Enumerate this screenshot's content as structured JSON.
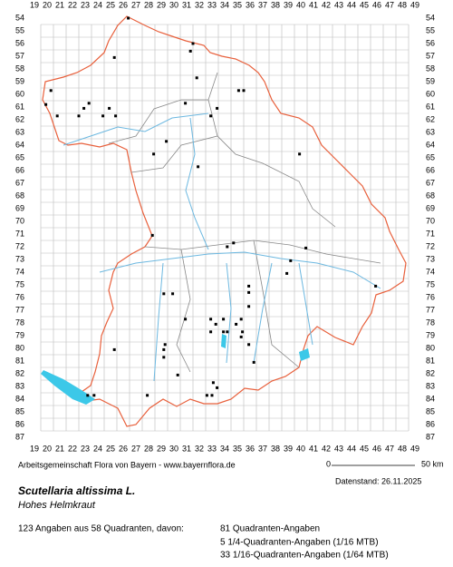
{
  "map": {
    "xticks": [
      19,
      20,
      21,
      22,
      23,
      24,
      25,
      26,
      27,
      28,
      29,
      30,
      31,
      32,
      33,
      34,
      35,
      36,
      37,
      38,
      39,
      40,
      41,
      42,
      43,
      44,
      45,
      46,
      47,
      48,
      49
    ],
    "yticks": [
      54,
      55,
      56,
      57,
      58,
      59,
      60,
      61,
      62,
      63,
      64,
      65,
      66,
      67,
      68,
      69,
      70,
      71,
      72,
      73,
      74,
      75,
      76,
      77,
      78,
      79,
      80,
      81,
      82,
      83,
      84,
      85,
      86,
      87
    ],
    "points": [
      [
        26.4,
        54.0
      ],
      [
        31.5,
        56.0
      ],
      [
        31.3,
        56.6
      ],
      [
        25.3,
        57.1
      ],
      [
        31.8,
        58.7
      ],
      [
        20.3,
        59.7
      ],
      [
        35.1,
        59.7
      ],
      [
        35.5,
        59.7
      ],
      [
        19.9,
        60.8
      ],
      [
        23.3,
        60.7
      ],
      [
        30.9,
        60.7
      ],
      [
        22.9,
        61.1
      ],
      [
        24.9,
        61.1
      ],
      [
        33.4,
        61.1
      ],
      [
        32.9,
        61.7
      ],
      [
        22.5,
        61.7
      ],
      [
        24.4,
        61.7
      ],
      [
        25.4,
        61.7
      ],
      [
        20.8,
        61.7
      ],
      [
        29.4,
        63.7
      ],
      [
        39.9,
        64.7
      ],
      [
        28.4,
        64.7
      ],
      [
        31.9,
        65.7
      ],
      [
        28.3,
        71.1
      ],
      [
        34.2,
        72.0
      ],
      [
        34.7,
        71.7
      ],
      [
        40.4,
        72.1
      ],
      [
        39.2,
        73.1
      ],
      [
        38.9,
        74.1
      ],
      [
        35.9,
        75.1
      ],
      [
        45.9,
        75.1
      ],
      [
        35.9,
        75.6
      ],
      [
        35.9,
        76.7
      ],
      [
        29.2,
        75.7
      ],
      [
        29.9,
        75.7
      ],
      [
        30.9,
        77.7
      ],
      [
        32.9,
        77.7
      ],
      [
        33.9,
        77.7
      ],
      [
        35.3,
        77.7
      ],
      [
        32.9,
        78.7
      ],
      [
        33.9,
        78.7
      ],
      [
        34.2,
        78.7
      ],
      [
        33.3,
        78.1
      ],
      [
        34.9,
        78.1
      ],
      [
        35.4,
        78.7
      ],
      [
        35.3,
        79.1
      ],
      [
        35.9,
        79.7
      ],
      [
        25.3,
        80.1
      ],
      [
        29.3,
        79.7
      ],
      [
        29.2,
        80.1
      ],
      [
        29.2,
        80.7
      ],
      [
        36.3,
        81.1
      ],
      [
        30.3,
        82.1
      ],
      [
        33.1,
        82.7
      ],
      [
        33.4,
        83.1
      ],
      [
        32.6,
        83.7
      ],
      [
        33.0,
        83.7
      ],
      [
        27.9,
        83.7
      ],
      [
        23.2,
        83.7
      ],
      [
        23.7,
        83.7
      ]
    ]
  },
  "footer": {
    "source": "Arbeitsgemeinschaft Flora von Bayern - www.bayernflora.de",
    "scale_start": "0",
    "scale_end": "50 km",
    "date": "Datenstand: 26.11.2025"
  },
  "species": {
    "name": "Scutellaria altissima L.",
    "common_name": "Hohes Helmkraut"
  },
  "summary": {
    "total": "123 Angaben aus 58 Quadranten, davon:",
    "lines": [
      "81 Quadranten-Angaben",
      "5 1/4-Quadranten-Angaben (1/16 MTB)",
      "33 1/16-Quadranten-Angaben (1/64 MTB)"
    ]
  }
}
